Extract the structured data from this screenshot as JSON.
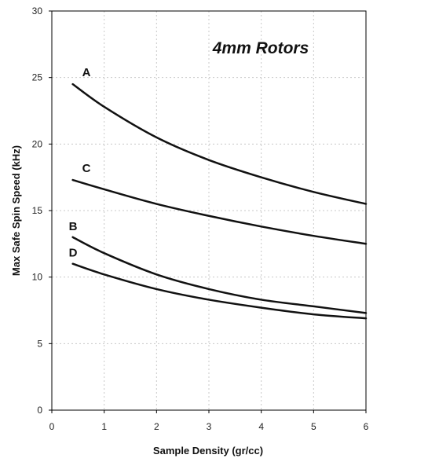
{
  "chart_data": {
    "type": "line",
    "title": "4mm Rotors",
    "xlabel": "Sample Density (gr/cc)",
    "ylabel": "Max Safe Spin Speed (kHz)",
    "xlim": [
      0,
      6
    ],
    "ylim": [
      0,
      30
    ],
    "xticks": [
      0,
      1,
      2,
      3,
      4,
      5,
      6
    ],
    "yticks": [
      0,
      5,
      10,
      15,
      20,
      25,
      30
    ],
    "grid": true,
    "legend": "none",
    "line_color": "#111111",
    "series": [
      {
        "name": "A",
        "x": [
          0.4,
          1,
          2,
          3,
          4,
          5,
          6
        ],
        "y": [
          24.5,
          22.8,
          20.5,
          18.8,
          17.5,
          16.4,
          15.5
        ]
      },
      {
        "name": "C",
        "x": [
          0.4,
          1,
          2,
          3,
          4,
          5,
          6
        ],
        "y": [
          17.3,
          16.6,
          15.5,
          14.6,
          13.8,
          13.1,
          12.5
        ]
      },
      {
        "name": "B",
        "x": [
          0.4,
          1,
          2,
          3,
          4,
          5,
          6
        ],
        "y": [
          13.0,
          11.8,
          10.2,
          9.1,
          8.3,
          7.8,
          7.3
        ]
      },
      {
        "name": "D",
        "x": [
          0.4,
          1,
          2,
          3,
          4,
          5,
          6
        ],
        "y": [
          11.0,
          10.2,
          9.1,
          8.3,
          7.7,
          7.2,
          6.9
        ]
      }
    ]
  }
}
